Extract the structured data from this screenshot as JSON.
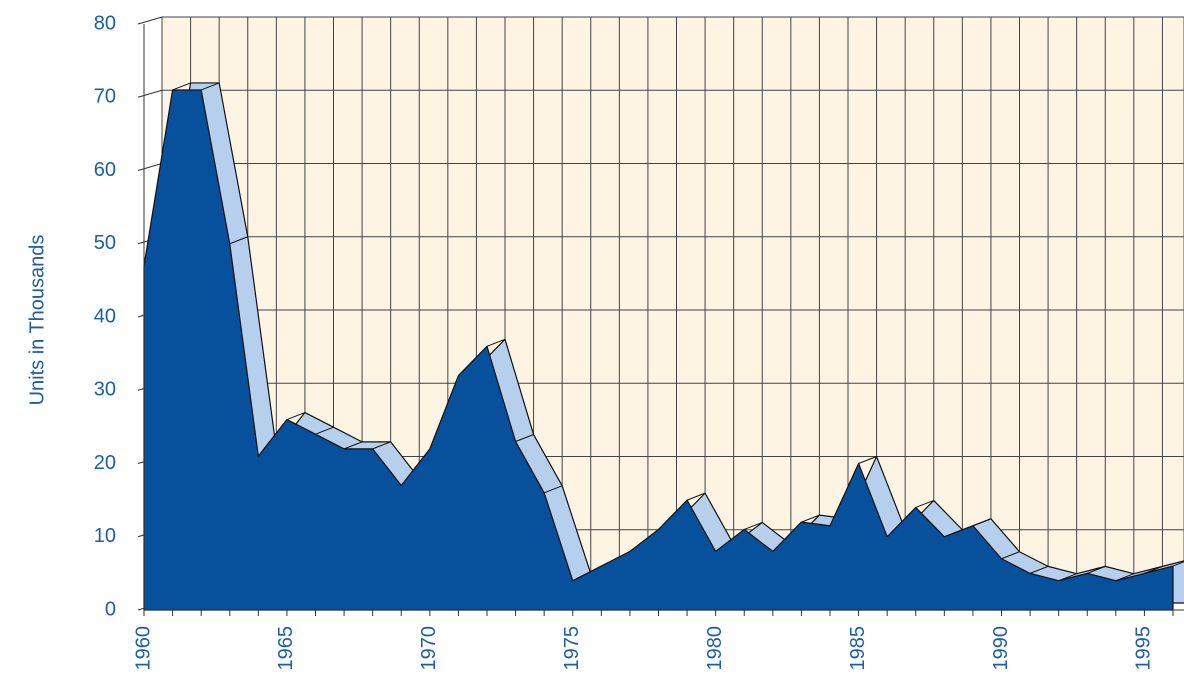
{
  "chart_data": {
    "type": "area3d",
    "y_label": "Units in Thousands",
    "x": [
      1960,
      1961,
      1962,
      1963,
      1964,
      1965,
      1966,
      1967,
      1968,
      1969,
      1970,
      1971,
      1972,
      1973,
      1974,
      1975,
      1976,
      1977,
      1978,
      1979,
      1980,
      1981,
      1982,
      1983,
      1984,
      1985,
      1986,
      1987,
      1988,
      1989,
      1990,
      1991,
      1992,
      1993,
      1994,
      1995,
      1996
    ],
    "values": [
      47,
      71,
      71,
      50,
      21,
      26,
      24,
      22,
      22,
      17,
      22,
      32,
      36,
      23,
      16,
      4,
      6,
      8,
      11,
      15,
      8,
      11,
      8,
      12,
      11.5,
      20,
      10,
      14,
      10,
      11.5,
      7,
      5,
      4,
      5,
      4,
      5,
      6
    ],
    "color": "#07509b",
    "top_color": "#b6cfec",
    "wall_color": "#fdf4e4",
    "xlim": [
      1960,
      1996
    ],
    "xticks": [
      1960,
      1965,
      1970,
      1975,
      1980,
      1985,
      1990,
      1995
    ],
    "ylim": [
      0,
      80
    ],
    "yticks": [
      0,
      10,
      20,
      30,
      40,
      50,
      60,
      70,
      80
    ],
    "grid": true
  }
}
